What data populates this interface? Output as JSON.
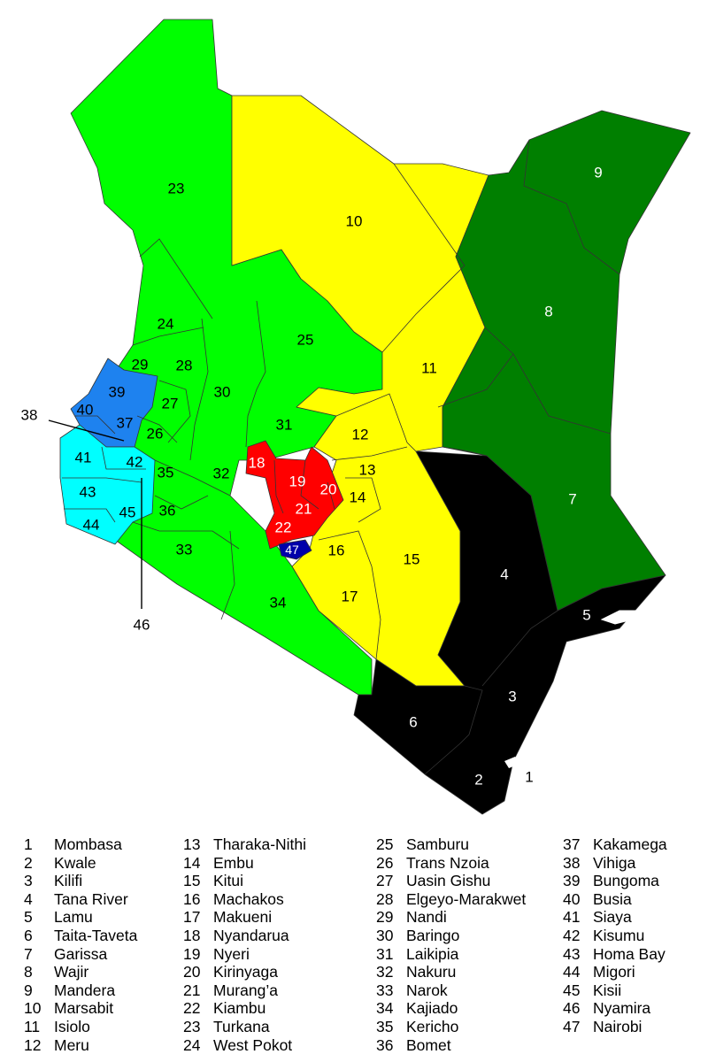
{
  "map": {
    "colors": {
      "green": "#00ff00",
      "yellow": "#ffff00",
      "dark_green": "#007f00",
      "black": "#000000",
      "red": "#ff0000",
      "blue": "#1e82ef",
      "cyan": "#00ffff",
      "navy": "#0000aa",
      "border": "#333333"
    },
    "callouts": [
      "38",
      "46",
      "1"
    ]
  },
  "counties": [
    {
      "num": "1",
      "name": "Mombasa",
      "group": "black"
    },
    {
      "num": "2",
      "name": "Kwale",
      "group": "black"
    },
    {
      "num": "3",
      "name": "Kilifi",
      "group": "black"
    },
    {
      "num": "4",
      "name": "Tana River",
      "group": "black"
    },
    {
      "num": "5",
      "name": "Lamu",
      "group": "black"
    },
    {
      "num": "6",
      "name": "Taita-Taveta",
      "group": "black"
    },
    {
      "num": "7",
      "name": "Garissa",
      "group": "dark_green"
    },
    {
      "num": "8",
      "name": "Wajir",
      "group": "dark_green"
    },
    {
      "num": "9",
      "name": "Mandera",
      "group": "dark_green"
    },
    {
      "num": "10",
      "name": "Marsabit",
      "group": "yellow"
    },
    {
      "num": "11",
      "name": "Isiolo",
      "group": "yellow"
    },
    {
      "num": "12",
      "name": "Meru",
      "group": "yellow"
    },
    {
      "num": "13",
      "name": "Tharaka-Nithi",
      "group": "yellow"
    },
    {
      "num": "14",
      "name": "Embu",
      "group": "yellow"
    },
    {
      "num": "15",
      "name": "Kitui",
      "group": "yellow"
    },
    {
      "num": "16",
      "name": "Machakos",
      "group": "yellow"
    },
    {
      "num": "17",
      "name": "Makueni",
      "group": "yellow"
    },
    {
      "num": "18",
      "name": "Nyandarua",
      "group": "red"
    },
    {
      "num": "19",
      "name": "Nyeri",
      "group": "red"
    },
    {
      "num": "20",
      "name": "Kirinyaga",
      "group": "red"
    },
    {
      "num": "21",
      "name": "Murang’a",
      "group": "red"
    },
    {
      "num": "22",
      "name": "Kiambu",
      "group": "red"
    },
    {
      "num": "23",
      "name": "Turkana",
      "group": "green"
    },
    {
      "num": "24",
      "name": "West Pokot",
      "group": "green"
    },
    {
      "num": "25",
      "name": "Samburu",
      "group": "green"
    },
    {
      "num": "26",
      "name": "Trans Nzoia",
      "group": "green"
    },
    {
      "num": "27",
      "name": "Uasin Gishu",
      "group": "green"
    },
    {
      "num": "28",
      "name": "Elgeyo-Marakwet",
      "group": "green"
    },
    {
      "num": "29",
      "name": "Nandi",
      "group": "green"
    },
    {
      "num": "30",
      "name": "Baringo",
      "group": "green"
    },
    {
      "num": "31",
      "name": "Laikipia",
      "group": "green"
    },
    {
      "num": "32",
      "name": "Nakuru",
      "group": "green"
    },
    {
      "num": "33",
      "name": "Narok",
      "group": "green"
    },
    {
      "num": "34",
      "name": "Kajiado",
      "group": "green"
    },
    {
      "num": "35",
      "name": "Kericho",
      "group": "green"
    },
    {
      "num": "36",
      "name": "Bomet",
      "group": "green"
    },
    {
      "num": "37",
      "name": "Kakamega",
      "group": "blue"
    },
    {
      "num": "38",
      "name": "Vihiga",
      "group": "blue"
    },
    {
      "num": "39",
      "name": "Bungoma",
      "group": "blue"
    },
    {
      "num": "40",
      "name": "Busia",
      "group": "blue"
    },
    {
      "num": "41",
      "name": "Siaya",
      "group": "cyan"
    },
    {
      "num": "42",
      "name": "Kisumu",
      "group": "cyan"
    },
    {
      "num": "43",
      "name": "Homa Bay",
      "group": "cyan"
    },
    {
      "num": "44",
      "name": "Migori",
      "group": "cyan"
    },
    {
      "num": "45",
      "name": "Kisii",
      "group": "cyan"
    },
    {
      "num": "46",
      "name": "Nyamira",
      "group": "cyan"
    },
    {
      "num": "47",
      "name": "Nairobi",
      "group": "navy"
    }
  ]
}
